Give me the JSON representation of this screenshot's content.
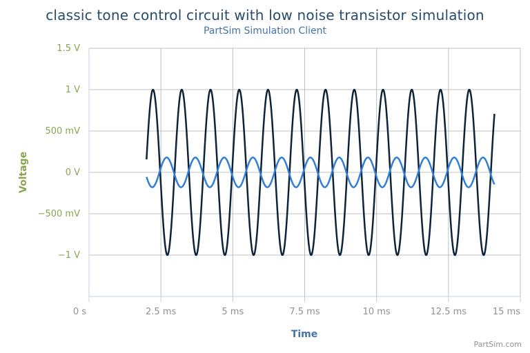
{
  "chart_data": {
    "type": "line",
    "title": "classic tone control circuit with low noise transistor simulation",
    "subtitle": "PartSim Simulation Client",
    "xlabel": "Time",
    "ylabel": "Voltage",
    "credit": "PartSim.com",
    "xlim": [
      0,
      15
    ],
    "ylim": [
      -1.5,
      1.5
    ],
    "x_unit": "ms",
    "y_unit": "V",
    "x_ticks": [
      {
        "value": 0,
        "label": "0 s"
      },
      {
        "value": 2.5,
        "label": "2.5 ms"
      },
      {
        "value": 5,
        "label": "5 ms"
      },
      {
        "value": 7.5,
        "label": "7.5 ms"
      },
      {
        "value": 10,
        "label": "10 ms"
      },
      {
        "value": 12.5,
        "label": "12.5 ms"
      },
      {
        "value": 15,
        "label": "15 ms"
      }
    ],
    "y_ticks": [
      {
        "value": 1.5,
        "label": "1.5 V"
      },
      {
        "value": 1,
        "label": "1 V"
      },
      {
        "value": 0.5,
        "label": "500 mV"
      },
      {
        "value": 0,
        "label": "0 V"
      },
      {
        "value": -0.5,
        "label": "-500 mV"
      },
      {
        "value": -1,
        "label": "-1 V"
      }
    ],
    "grid": true,
    "series": [
      {
        "color": "#0d233a",
        "waveform": "sine",
        "amplitude": 1.0,
        "frequency_khz": 1.0,
        "offset": 0.0,
        "start_phase_deg": 9,
        "x_start": 2.0,
        "x_end": 14.1
      },
      {
        "color": "#2f7ed8",
        "waveform": "sine",
        "amplitude": 0.18,
        "frequency_khz": 1.0,
        "offset": 0.0,
        "start_phase_deg": 198,
        "x_start": 2.0,
        "x_end": 14.1
      }
    ]
  },
  "colors": {
    "title": "#274b6d",
    "subtitle": "#4572a7",
    "y_axis_text": "#89a54e",
    "x_axis_text": "#4572a7",
    "tick_label": "#909090",
    "grid": "#c0c0c0",
    "axis_line": "#c0d0e0"
  }
}
